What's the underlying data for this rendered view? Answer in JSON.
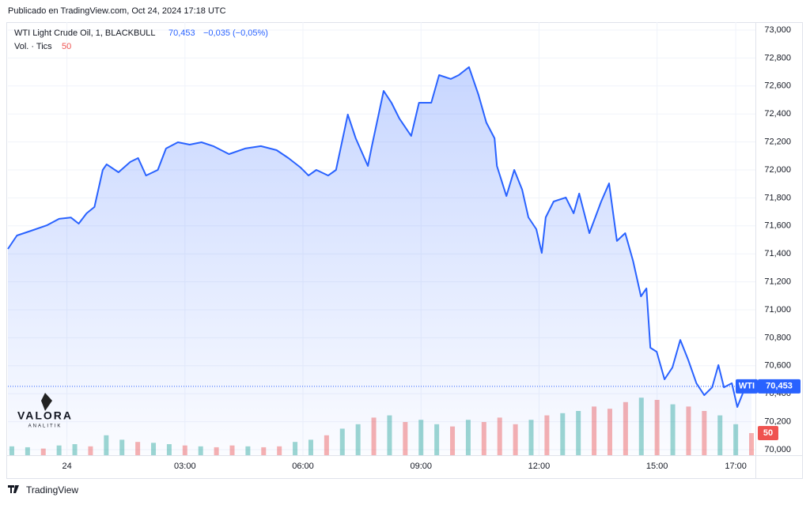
{
  "header": {
    "published": "Publicado en TradingView.com, Oct 24, 2024 17:18 UTC"
  },
  "chart_data": {
    "type": "area",
    "title": "WTI Light Crude Oil, 1, BLACKBULL",
    "last": {
      "value": 70.453,
      "label": "70,453"
    },
    "change_label": "−0,035 (−0,05%)",
    "series": [
      {
        "name": "WTI",
        "color": "#2962ff",
        "x": [
          -1.5,
          -1.27,
          -0.91,
          -0.5,
          -0.2,
          0.1,
          0.3,
          0.5,
          0.7,
          0.91,
          1.01,
          1.31,
          1.61,
          1.81,
          2.01,
          2.31,
          2.52,
          2.82,
          3.12,
          3.42,
          3.72,
          4.12,
          4.53,
          4.93,
          5.33,
          5.63,
          5.94,
          6.14,
          6.34,
          6.64,
          6.84,
          7.14,
          7.34,
          7.65,
          7.75,
          8.05,
          8.25,
          8.45,
          8.75,
          8.95,
          9.26,
          9.46,
          9.76,
          9.96,
          10.22,
          10.46,
          10.66,
          10.87,
          10.93,
          11.17,
          11.37,
          11.57,
          11.73,
          11.93,
          12.07,
          12.17,
          12.37,
          12.68,
          12.88,
          13.02,
          13.28,
          13.58,
          13.78,
          13.98,
          14.19,
          14.39,
          14.59,
          14.73,
          14.83,
          14.99,
          15.19,
          15.39,
          15.59,
          15.79,
          16.0,
          16.2,
          16.4,
          16.56,
          16.7,
          16.9,
          17.04,
          17.2,
          17.4
        ],
        "values": [
          71.435,
          71.531,
          71.565,
          71.605,
          71.65,
          71.66,
          71.616,
          71.69,
          71.735,
          72.0,
          72.04,
          71.983,
          72.057,
          72.085,
          71.96,
          72.0,
          72.153,
          72.198,
          72.181,
          72.198,
          72.17,
          72.113,
          72.153,
          72.17,
          72.141,
          72.085,
          72.017,
          71.96,
          72.0,
          71.96,
          72.0,
          72.396,
          72.226,
          72.028,
          72.17,
          72.565,
          72.48,
          72.367,
          72.243,
          72.48,
          72.48,
          72.678,
          72.65,
          72.678,
          72.735,
          72.537,
          72.339,
          72.226,
          72.028,
          71.813,
          72.0,
          71.859,
          71.661,
          71.576,
          71.407,
          71.661,
          71.774,
          71.803,
          71.69,
          71.831,
          71.548,
          71.774,
          71.904,
          71.492,
          71.548,
          71.35,
          71.096,
          71.153,
          70.729,
          70.7,
          70.503,
          70.588,
          70.785,
          70.644,
          70.475,
          70.39,
          70.446,
          70.605,
          70.446,
          70.475,
          70.305,
          70.418,
          70.453
        ]
      }
    ],
    "xlim": [
      -1.5,
      17.5
    ],
    "xticks": [
      {
        "value": 0,
        "label": "24"
      },
      {
        "value": 3,
        "label": "03:00"
      },
      {
        "value": 6,
        "label": "06:00"
      },
      {
        "value": 9,
        "label": "09:00"
      },
      {
        "value": 12,
        "label": "12:00"
      },
      {
        "value": 15,
        "label": "15:00"
      },
      {
        "value": 17,
        "label": "17:00"
      }
    ],
    "ylim": [
      70,
      73
    ],
    "yticks": [
      {
        "value": 70,
        "label": "70,000"
      },
      {
        "value": 70.2,
        "label": "70,200"
      },
      {
        "value": 70.4,
        "label": "70,400"
      },
      {
        "value": 70.6,
        "label": "70,600"
      },
      {
        "value": 70.8,
        "label": "70,800"
      },
      {
        "value": 71,
        "label": "71,000"
      },
      {
        "value": 71.2,
        "label": "71,200"
      },
      {
        "value": 71.4,
        "label": "71,400"
      },
      {
        "value": 71.6,
        "label": "71,600"
      },
      {
        "value": 71.8,
        "label": "71,800"
      },
      {
        "value": 72,
        "label": "72,000"
      },
      {
        "value": 72.2,
        "label": "72,200"
      },
      {
        "value": 72.4,
        "label": "72,400"
      },
      {
        "value": 72.6,
        "label": "72,600"
      },
      {
        "value": 72.8,
        "label": "72,800"
      },
      {
        "value": 73,
        "label": "73,000"
      }
    ],
    "grid": true,
    "volume": {
      "title": "Vol. · Tics",
      "last": 50,
      "vlim": [
        0,
        200
      ],
      "x": [
        -1.4,
        -1.0,
        -0.6,
        -0.2,
        0.2,
        0.6,
        1.0,
        1.4,
        1.8,
        2.2,
        2.6,
        3.0,
        3.4,
        3.8,
        4.2,
        4.6,
        5.0,
        5.4,
        5.8,
        6.2,
        6.6,
        7.0,
        7.4,
        7.8,
        8.2,
        8.6,
        9.0,
        9.4,
        9.8,
        10.2,
        10.6,
        11.0,
        11.4,
        11.8,
        12.2,
        12.6,
        13.0,
        13.4,
        13.8,
        14.2,
        14.6,
        15.0,
        15.4,
        15.8,
        16.2,
        16.6,
        17.0,
        17.4
      ],
      "values": [
        20,
        18,
        15,
        22,
        25,
        20,
        45,
        35,
        30,
        28,
        25,
        22,
        20,
        18,
        22,
        20,
        18,
        20,
        30,
        35,
        45,
        60,
        70,
        85,
        90,
        75,
        80,
        70,
        65,
        80,
        75,
        85,
        70,
        80,
        90,
        95,
        100,
        110,
        105,
        120,
        130,
        125,
        115,
        110,
        100,
        90,
        70,
        50
      ],
      "colors": [
        "#26a69a",
        "#26a69a",
        "#ef5350",
        "#26a69a",
        "#26a69a",
        "#ef5350",
        "#26a69a",
        "#26a69a",
        "#ef5350",
        "#26a69a",
        "#26a69a",
        "#ef5350",
        "#26a69a",
        "#ef5350",
        "#ef5350",
        "#26a69a",
        "#ef5350",
        "#ef5350",
        "#26a69a",
        "#26a69a",
        "#ef5350",
        "#26a69a",
        "#26a69a",
        "#ef5350",
        "#26a69a",
        "#ef5350",
        "#26a69a",
        "#26a69a",
        "#ef5350",
        "#26a69a",
        "#ef5350",
        "#ef5350",
        "#ef5350",
        "#26a69a",
        "#ef5350",
        "#26a69a",
        "#26a69a",
        "#ef5350",
        "#ef5350",
        "#ef5350",
        "#26a69a",
        "#ef5350",
        "#26a69a",
        "#ef5350",
        "#ef5350",
        "#26a69a",
        "#26a69a",
        "#ef5350"
      ]
    }
  },
  "watermark": {
    "name": "VALORA",
    "sub": "ANALITIK"
  },
  "footer": "TradingView"
}
